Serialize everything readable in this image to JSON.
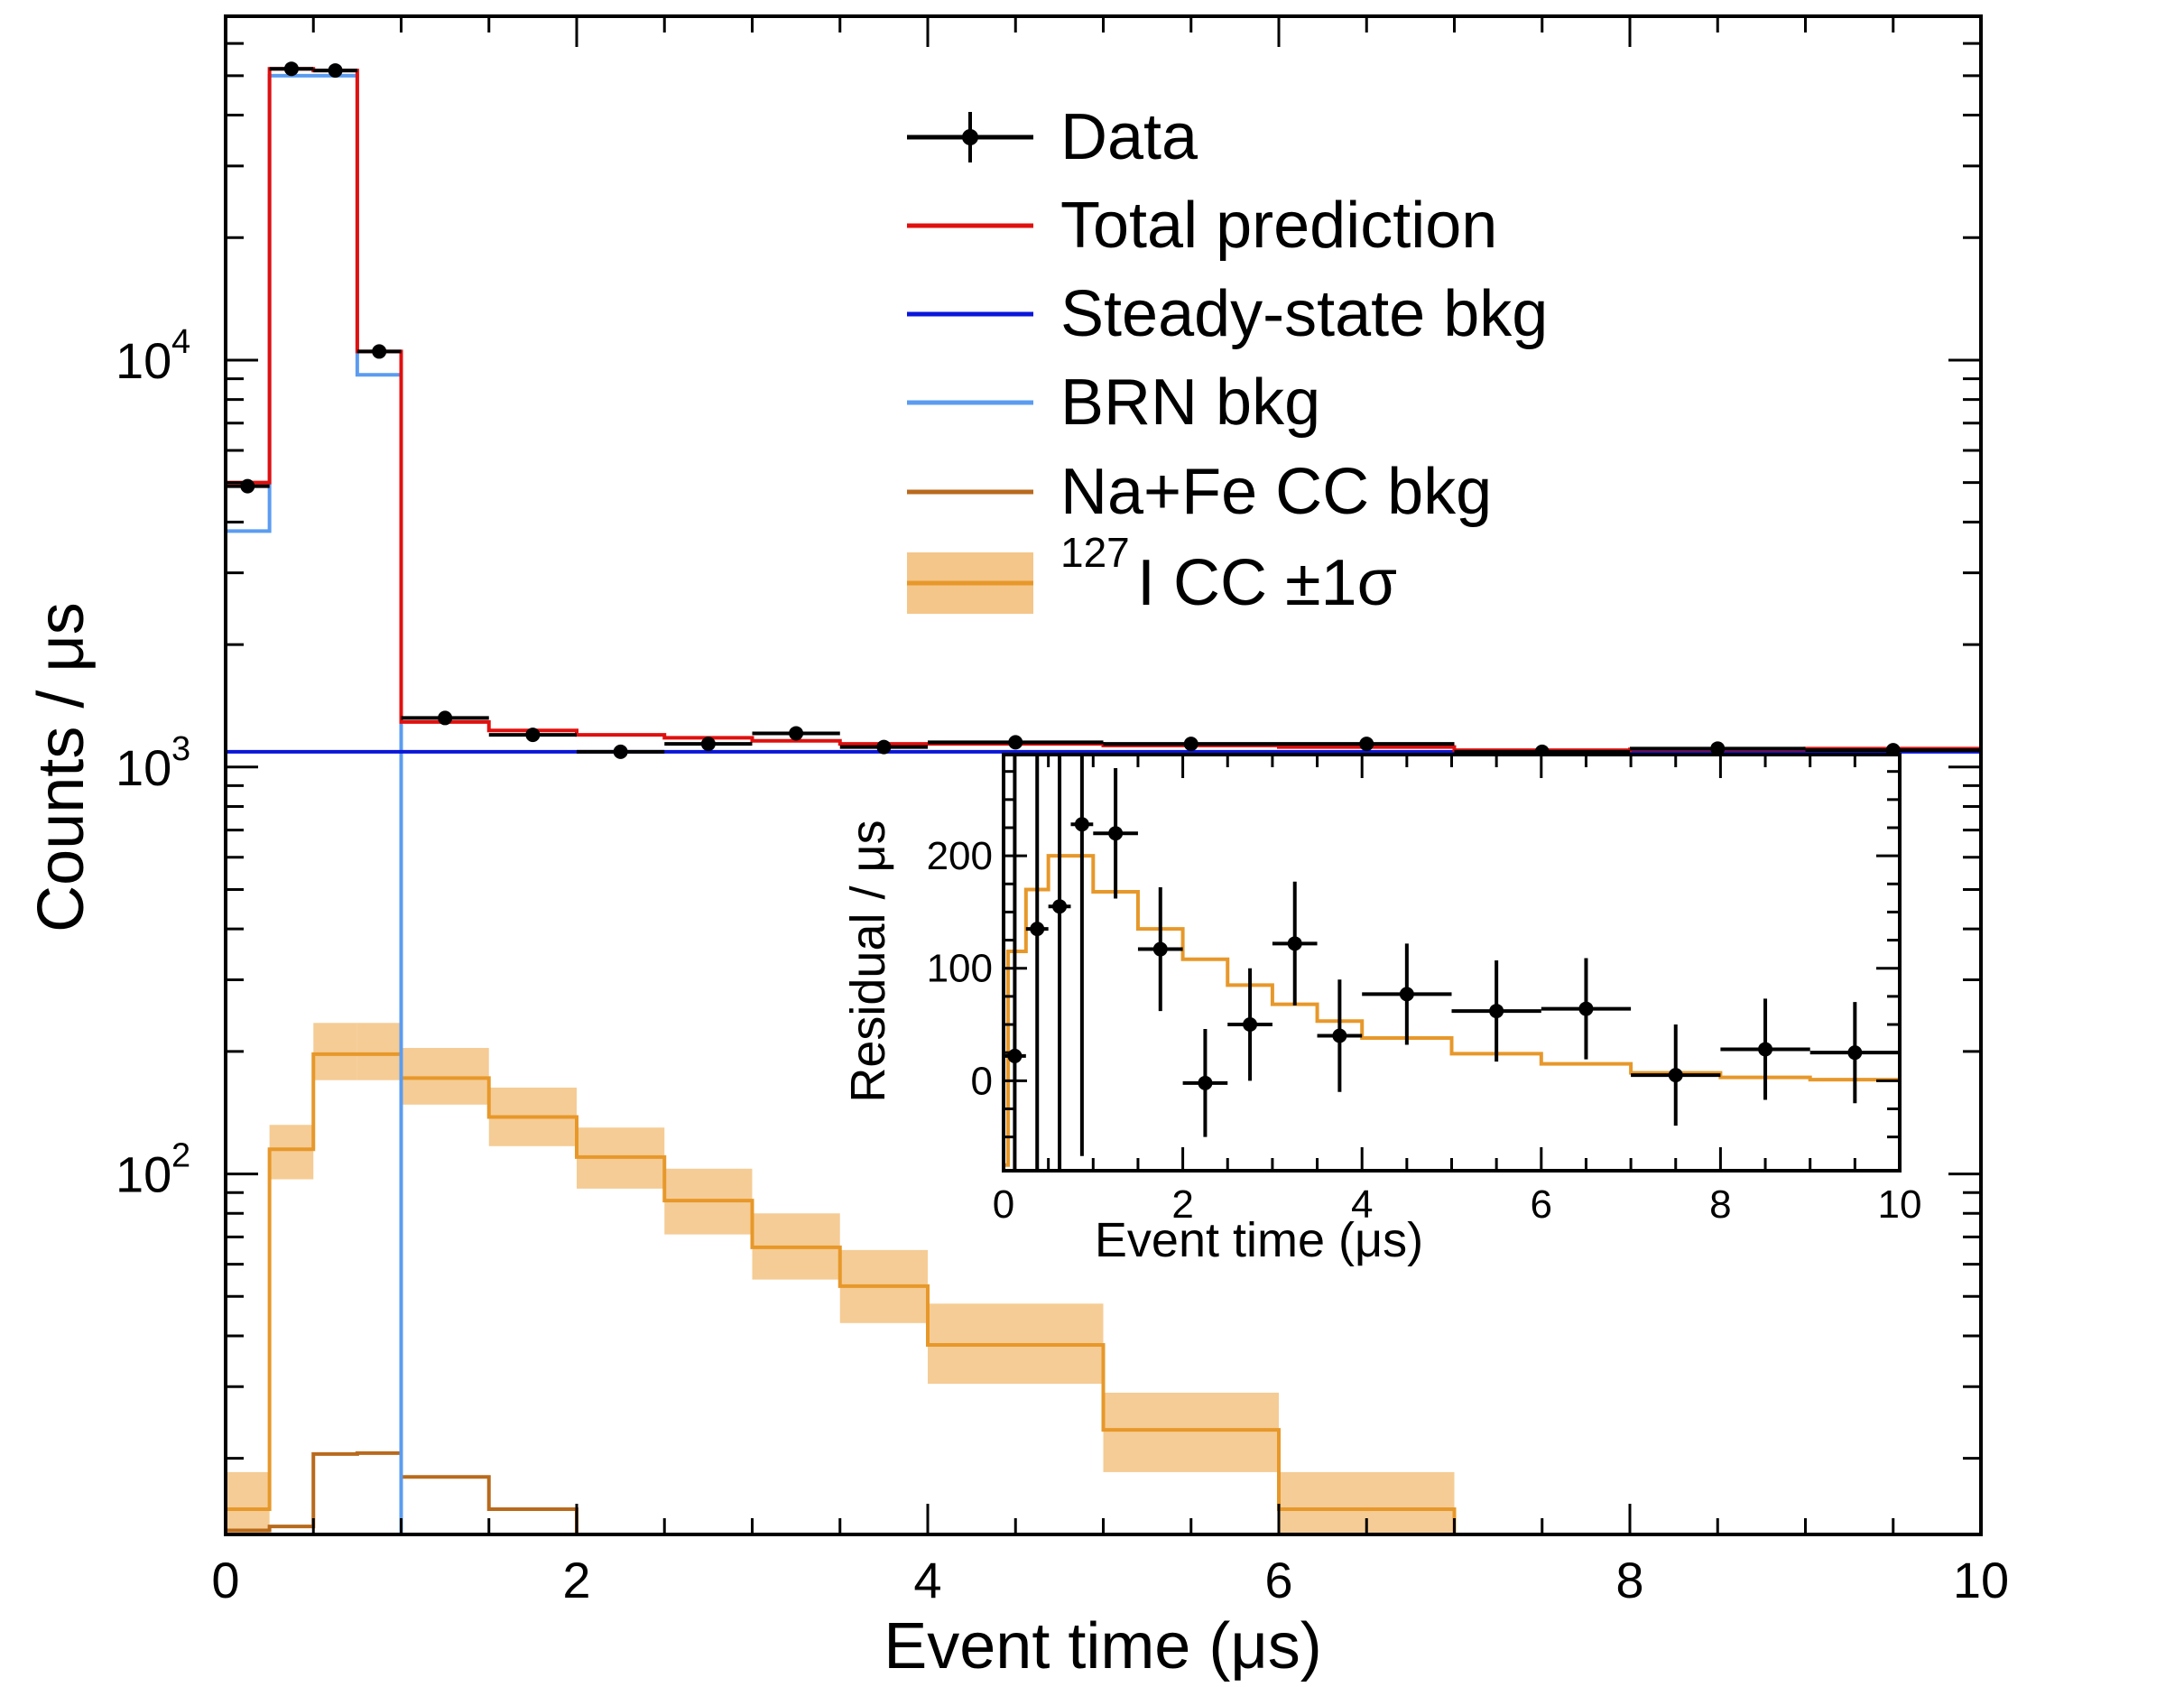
{
  "chart_data": [
    {
      "type": "histogram",
      "xlabel": "Event time (μs)",
      "ylabel": "Counts / μs",
      "xlim": [
        0,
        10
      ],
      "ylim": [
        13,
        70000
      ],
      "yscale": "log",
      "grid": false,
      "legend_position": "top-right",
      "x_ticks": [
        0,
        2,
        4,
        6,
        8,
        10
      ],
      "y_ticks": [
        {
          "value": 100,
          "base": "10",
          "exp": "2"
        },
        {
          "value": 1000,
          "base": "10",
          "exp": "3"
        },
        {
          "value": 10000,
          "base": "10",
          "exp": "4"
        }
      ],
      "legend": {
        "data": "Data",
        "total": "Total prediction",
        "steady": "Steady-state bkg",
        "brn": "BRN bkg",
        "nafe": "Na+Fe CC bkg",
        "icc_sup": "127",
        "icc_main": "I CC ±1σ"
      },
      "colors": {
        "data": "#000000",
        "total": "#e0100f",
        "steady": "#0a16d8",
        "brn": "#5b9cf0",
        "nafe": "#b86a1c",
        "icc": "#e7982a",
        "icc_band": "#f4c68a"
      },
      "data_points": {
        "x": [
          0.125,
          0.375,
          0.625,
          0.875,
          1.25,
          1.75,
          2.25,
          2.75,
          3.25,
          3.75,
          4.5,
          5.5,
          6.5,
          7.5,
          8.5,
          9.5
        ],
        "xerr": [
          0.125,
          0.125,
          0.125,
          0.125,
          0.25,
          0.25,
          0.25,
          0.25,
          0.25,
          0.25,
          0.5,
          0.5,
          0.5,
          0.5,
          0.5,
          0.5
        ],
        "y": [
          4900,
          52000,
          51500,
          10500,
          1320,
          1200,
          1090,
          1140,
          1210,
          1120,
          1150,
          1140,
          1140,
          1090,
          1110,
          1100
        ]
      },
      "bin_edges": [
        0,
        0.25,
        0.5,
        0.75,
        1.0,
        1.5,
        2.0,
        2.5,
        3.0,
        3.5,
        4.0,
        5.0,
        6.0,
        7.0,
        8.0,
        9.0,
        10.0
      ],
      "series": [
        {
          "key": "total",
          "values": [
            5000,
            52000,
            51500,
            10500,
            1290,
            1230,
            1200,
            1180,
            1160,
            1140,
            1140,
            1130,
            1120,
            1100,
            1105,
            1110
          ]
        },
        {
          "key": "steady",
          "values": [
            1090,
            1090,
            1090,
            1090,
            1090,
            1090,
            1090,
            1090,
            1090,
            1090,
            1090,
            1090,
            1090,
            1090,
            1090,
            1090
          ]
        },
        {
          "key": "brn",
          "values": [
            3800,
            50000,
            50000,
            9200,
            13,
            13,
            13,
            13,
            13,
            13,
            13,
            13,
            13,
            13,
            13,
            13
          ]
        },
        {
          "key": "nafe",
          "values": [
            13.3,
            13.6,
            20.5,
            20.6,
            18.0,
            15.0,
            13,
            13,
            13,
            13,
            13,
            13,
            13,
            13,
            13,
            13
          ]
        },
        {
          "key": "icc",
          "values": [
            15,
            115,
            197,
            197,
            172,
            138,
            110,
            86,
            66,
            53,
            38,
            23.5,
            15,
            13,
            13,
            13
          ]
        },
        {
          "key": "icc_lo",
          "values": [
            13,
            97,
            170,
            170,
            148,
            117,
            92,
            71,
            55,
            43,
            30.5,
            18.5,
            13,
            13,
            13,
            13
          ]
        },
        {
          "key": "icc_hi",
          "values": [
            18.5,
            132,
            235,
            235,
            204,
            163,
            130,
            103,
            80,
            65,
            48,
            29,
            18.5,
            13,
            13,
            13
          ]
        }
      ]
    },
    {
      "type": "histogram",
      "xlabel": "Event time (μs)",
      "ylabel": "Residual / μs",
      "xlim": [
        0,
        10
      ],
      "ylim": [
        -80,
        290
      ],
      "x_ticks": [
        0,
        2,
        4,
        6,
        8,
        10
      ],
      "y_ticks": [
        0,
        100,
        200
      ],
      "data_points": {
        "x": [
          0.125,
          0.375,
          0.625,
          0.875,
          1.25,
          1.75,
          2.25,
          2.75,
          3.25,
          3.75,
          4.5,
          5.5,
          6.5,
          7.5,
          8.5,
          9.5
        ],
        "xerr": [
          0.125,
          0.125,
          0.125,
          0.125,
          0.25,
          0.25,
          0.25,
          0.25,
          0.25,
          0.25,
          0.5,
          0.5,
          0.5,
          0.5,
          0.5,
          0.5
        ],
        "y": [
          22,
          135,
          155,
          228,
          220,
          117,
          -2,
          50,
          122,
          40,
          77,
          62,
          64,
          5,
          28,
          25
        ],
        "yerr": [
          300,
          400,
          400,
          295,
          58,
          55,
          48,
          50,
          55,
          50,
          45,
          45,
          45,
          45,
          45,
          45
        ]
      },
      "bin_edges": [
        0,
        0.05,
        0.25,
        0.5,
        0.75,
        1.0,
        1.5,
        2.0,
        2.5,
        3.0,
        3.5,
        4.0,
        5.0,
        6.0,
        7.0,
        8.0,
        9.0,
        10.0
      ],
      "series": [
        {
          "key": "icc",
          "values": [
            -75,
            115,
            170,
            200,
            200,
            168,
            135,
            108,
            85,
            68,
            53,
            38,
            24,
            15,
            7,
            3,
            1
          ]
        }
      ]
    }
  ]
}
